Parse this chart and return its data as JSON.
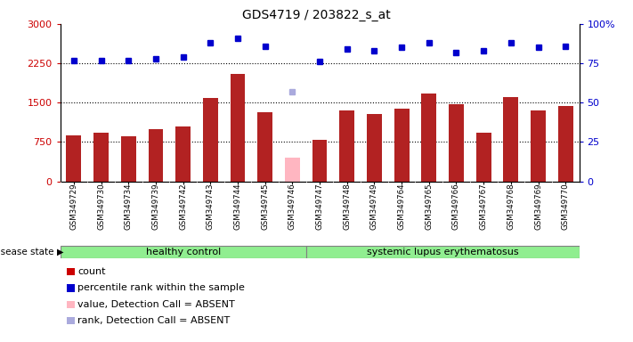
{
  "title": "GDS4719 / 203822_s_at",
  "samples": [
    "GSM349729",
    "GSM349730",
    "GSM349734",
    "GSM349739",
    "GSM349742",
    "GSM349743",
    "GSM349744",
    "GSM349745",
    "GSM349746",
    "GSM349747",
    "GSM349748",
    "GSM349749",
    "GSM349764",
    "GSM349765",
    "GSM349766",
    "GSM349767",
    "GSM349768",
    "GSM349769",
    "GSM349770"
  ],
  "counts_raw": [
    870,
    920,
    850,
    1000,
    1050,
    1580,
    2050,
    1320,
    450,
    790,
    1350,
    1280,
    1380,
    1680,
    1470,
    920,
    1600,
    1350,
    1430
  ],
  "absent_count": [
    false,
    false,
    false,
    false,
    false,
    false,
    false,
    false,
    true,
    false,
    false,
    false,
    false,
    false,
    false,
    false,
    false,
    false,
    false
  ],
  "pcts_raw": [
    77,
    77,
    77,
    78,
    79,
    88,
    91,
    86,
    57,
    76,
    84,
    83,
    85,
    88,
    82,
    83,
    88,
    85,
    86
  ],
  "absent_pct": [
    false,
    false,
    false,
    false,
    false,
    false,
    false,
    false,
    true,
    false,
    false,
    false,
    false,
    false,
    false,
    false,
    false,
    false,
    false
  ],
  "healthy_count": 9,
  "ylim_left": [
    0,
    3000
  ],
  "ylim_right": [
    0,
    100
  ],
  "yticks_left": [
    0,
    750,
    1500,
    2250,
    3000
  ],
  "yticks_right": [
    0,
    25,
    50,
    75,
    100
  ],
  "bar_color": "#B22222",
  "bar_color_absent": "#FFB6C1",
  "dot_color": "#0000CD",
  "dot_color_absent": "#AAAADD",
  "healthy_bg": "#90EE90",
  "lupus_bg": "#90EE90",
  "left_axis_color": "#CC0000",
  "right_axis_color": "#0000CC",
  "legend_count_color": "#CC0000",
  "legend_percentile_color": "#0000CD",
  "legend_absent_val_color": "#FFB6C1",
  "legend_absent_rank_color": "#AAAADD",
  "xtick_bg": "#D3D3D3",
  "grid_color": "black",
  "bar_width": 0.55
}
